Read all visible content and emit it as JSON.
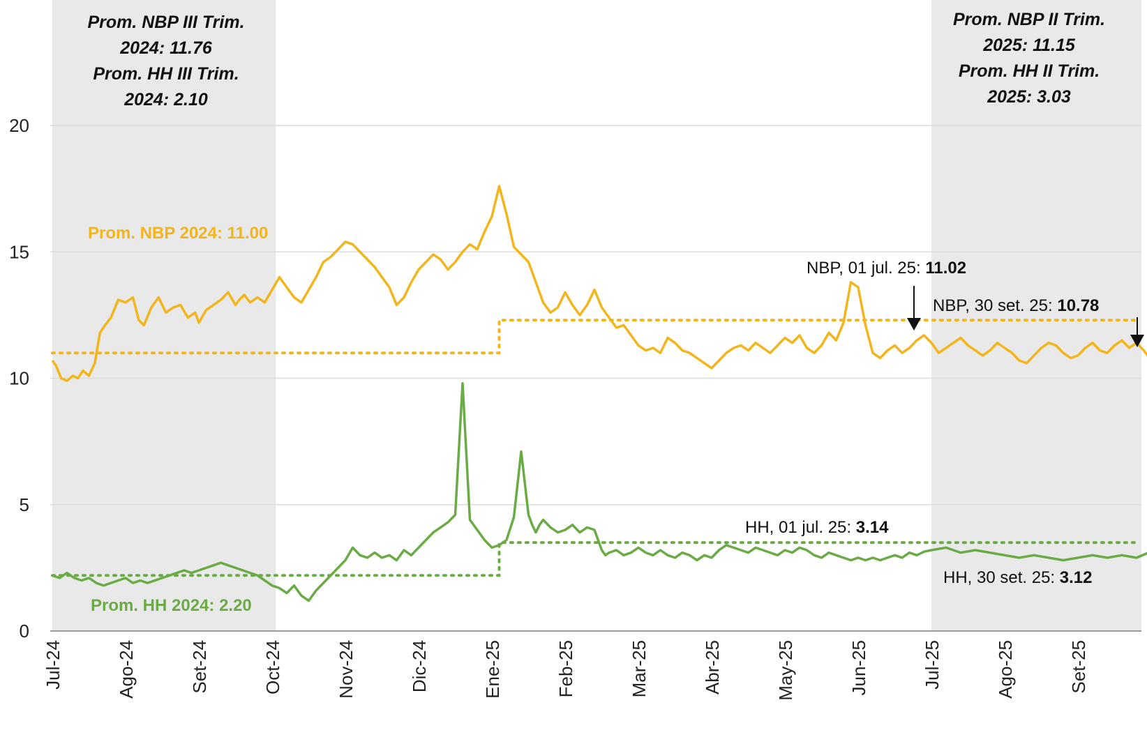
{
  "chart_data": {
    "type": "line",
    "ylim": [
      0,
      20
    ],
    "yticks": [
      "0",
      "5",
      "10",
      "15",
      "20"
    ],
    "categories": [
      "Jul-24",
      "Ago-24",
      "Set-24",
      "Oct-24",
      "Nov-24",
      "Dic-24",
      "Ene-25",
      "Feb-25",
      "Mar-25",
      "Abr-25",
      "May-25",
      "Jun-25",
      "Jul-25",
      "Ago-25",
      "Set-25"
    ],
    "grid": true,
    "colors": {
      "nbp": "#f2b51c",
      "hh": "#6aab45",
      "shade": "#e9e9e9"
    },
    "series": [
      {
        "key": "nbp",
        "x": [
          0,
          0.05,
          0.12,
          0.2,
          0.28,
          0.35,
          0.42,
          0.5,
          0.58,
          0.65,
          0.72,
          0.8,
          0.9,
          1.0,
          1.1,
          1.18,
          1.25,
          1.35,
          1.45,
          1.55,
          1.65,
          1.75,
          1.85,
          1.95,
          2.0,
          2.1,
          2.2,
          2.3,
          2.4,
          2.5,
          2.55,
          2.62,
          2.7,
          2.8,
          2.9,
          3.0,
          3.1,
          3.2,
          3.3,
          3.4,
          3.5,
          3.6,
          3.7,
          3.8,
          3.9,
          4.0,
          4.1,
          4.2,
          4.3,
          4.4,
          4.5,
          4.6,
          4.7,
          4.8,
          4.9,
          5.0,
          5.1,
          5.2,
          5.3,
          5.4,
          5.5,
          5.6,
          5.7,
          5.8,
          5.9,
          6.0,
          6.1,
          6.2,
          6.3,
          6.4,
          6.5,
          6.6,
          6.7,
          6.8,
          6.9,
          7.0,
          7.1,
          7.2,
          7.3,
          7.4,
          7.5,
          7.6,
          7.7,
          7.8,
          7.9,
          8.0,
          8.1,
          8.2,
          8.3,
          8.4,
          8.5,
          8.6,
          8.7,
          8.8,
          8.9,
          9.0,
          9.1,
          9.2,
          9.3,
          9.4,
          9.5,
          9.6,
          9.7,
          9.8,
          9.9,
          10.0,
          10.1,
          10.2,
          10.3,
          10.4,
          10.5,
          10.6,
          10.7,
          10.8,
          10.9,
          11.0,
          11.1,
          11.2,
          11.3,
          11.4,
          11.5,
          11.6,
          11.7,
          11.8,
          11.9,
          12.0,
          12.1,
          12.2,
          12.3,
          12.4,
          12.5,
          12.6,
          12.7,
          12.8,
          12.9,
          13.0,
          13.1,
          13.2,
          13.3,
          13.4,
          13.5,
          13.6,
          13.7,
          13.8,
          13.9,
          14.0,
          14.1,
          14.2,
          14.3,
          14.4,
          14.5,
          14.6,
          14.7,
          14.8,
          14.9,
          14.98
        ],
        "values": [
          10.7,
          10.5,
          10.0,
          9.9,
          10.1,
          10.0,
          10.3,
          10.1,
          10.6,
          11.8,
          12.1,
          12.4,
          13.1,
          13.0,
          13.2,
          12.3,
          12.1,
          12.8,
          13.2,
          12.6,
          12.8,
          12.9,
          12.4,
          12.6,
          12.2,
          12.7,
          12.9,
          13.1,
          13.4,
          12.9,
          13.1,
          13.3,
          13.0,
          13.2,
          13.0,
          13.5,
          14.0,
          13.6,
          13.2,
          13.0,
          13.5,
          14.0,
          14.6,
          14.8,
          15.1,
          15.4,
          15.3,
          15.0,
          14.7,
          14.4,
          14.0,
          13.6,
          12.9,
          13.2,
          13.8,
          14.3,
          14.6,
          14.9,
          14.7,
          14.3,
          14.6,
          15.0,
          15.3,
          15.1,
          15.8,
          16.4,
          17.6,
          16.5,
          15.2,
          14.9,
          14.6,
          13.8,
          13.0,
          12.6,
          12.8,
          13.4,
          12.9,
          12.5,
          12.9,
          13.5,
          12.8,
          12.4,
          12.0,
          12.1,
          11.7,
          11.3,
          11.1,
          11.2,
          11.0,
          11.6,
          11.4,
          11.1,
          11.0,
          10.8,
          10.6,
          10.4,
          10.7,
          11.0,
          11.2,
          11.3,
          11.1,
          11.4,
          11.2,
          11.0,
          11.3,
          11.6,
          11.4,
          11.7,
          11.2,
          11.0,
          11.3,
          11.8,
          11.5,
          12.2,
          13.8,
          13.6,
          12.1,
          11.0,
          10.8,
          11.1,
          11.3,
          11.0,
          11.2,
          11.5,
          11.7,
          11.4,
          11.0,
          11.2,
          11.4,
          11.6,
          11.3,
          11.1,
          10.9,
          11.1,
          11.4,
          11.2,
          11.0,
          10.7,
          10.6,
          10.9,
          11.2,
          11.4,
          11.3,
          11.0,
          10.8,
          10.9,
          11.2,
          11.4,
          11.1,
          11.0,
          11.3,
          11.5,
          11.2,
          11.4,
          11.1,
          10.78
        ]
      },
      {
        "key": "hh",
        "x": [
          0,
          0.1,
          0.2,
          0.3,
          0.4,
          0.5,
          0.6,
          0.7,
          0.8,
          0.9,
          1.0,
          1.1,
          1.2,
          1.3,
          1.4,
          1.5,
          1.6,
          1.7,
          1.8,
          1.9,
          2.0,
          2.1,
          2.2,
          2.3,
          2.4,
          2.5,
          2.6,
          2.7,
          2.8,
          2.9,
          3.0,
          3.1,
          3.2,
          3.3,
          3.4,
          3.5,
          3.6,
          3.7,
          3.8,
          3.9,
          4.0,
          4.1,
          4.2,
          4.3,
          4.4,
          4.5,
          4.6,
          4.7,
          4.8,
          4.9,
          5.0,
          5.1,
          5.2,
          5.3,
          5.4,
          5.5,
          5.6,
          5.7,
          5.8,
          5.9,
          6.0,
          6.1,
          6.2,
          6.3,
          6.4,
          6.5,
          6.55,
          6.6,
          6.65,
          6.7,
          6.8,
          6.9,
          7.0,
          7.1,
          7.2,
          7.3,
          7.4,
          7.45,
          7.5,
          7.55,
          7.6,
          7.7,
          7.8,
          7.9,
          8.0,
          8.1,
          8.2,
          8.3,
          8.4,
          8.5,
          8.6,
          8.7,
          8.8,
          8.9,
          9.0,
          9.1,
          9.2,
          9.3,
          9.4,
          9.5,
          9.6,
          9.7,
          9.8,
          9.9,
          10.0,
          10.1,
          10.2,
          10.3,
          10.4,
          10.5,
          10.6,
          10.7,
          10.8,
          10.9,
          11.0,
          11.1,
          11.2,
          11.3,
          11.4,
          11.5,
          11.6,
          11.7,
          11.8,
          11.9,
          12.0,
          12.2,
          12.4,
          12.6,
          12.8,
          13.0,
          13.2,
          13.4,
          13.6,
          13.8,
          14.0,
          14.2,
          14.4,
          14.6,
          14.8,
          14.98
        ],
        "values": [
          2.2,
          2.1,
          2.3,
          2.1,
          2.0,
          2.1,
          1.9,
          1.8,
          1.9,
          2.0,
          2.1,
          1.9,
          2.0,
          1.9,
          2.0,
          2.1,
          2.2,
          2.3,
          2.4,
          2.3,
          2.4,
          2.5,
          2.6,
          2.7,
          2.6,
          2.5,
          2.4,
          2.3,
          2.2,
          2.0,
          1.8,
          1.7,
          1.5,
          1.8,
          1.4,
          1.2,
          1.6,
          1.9,
          2.2,
          2.5,
          2.8,
          3.3,
          3.0,
          2.9,
          3.1,
          2.9,
          3.0,
          2.8,
          3.2,
          3.0,
          3.3,
          3.6,
          3.9,
          4.1,
          4.3,
          4.6,
          9.8,
          4.4,
          4.0,
          3.6,
          3.3,
          3.4,
          3.6,
          4.5,
          7.1,
          4.6,
          4.2,
          3.9,
          4.2,
          4.4,
          4.1,
          3.9,
          4.0,
          4.2,
          3.9,
          4.1,
          4.0,
          3.6,
          3.2,
          3.0,
          3.1,
          3.2,
          3.0,
          3.1,
          3.3,
          3.1,
          3.0,
          3.2,
          3.0,
          2.9,
          3.1,
          3.0,
          2.8,
          3.0,
          2.9,
          3.2,
          3.4,
          3.3,
          3.2,
          3.1,
          3.3,
          3.2,
          3.1,
          3.0,
          3.2,
          3.1,
          3.3,
          3.2,
          3.0,
          2.9,
          3.1,
          3.0,
          2.9,
          2.8,
          2.9,
          2.8,
          2.9,
          2.8,
          2.9,
          3.0,
          2.9,
          3.1,
          3.0,
          3.14,
          3.2,
          3.3,
          3.1,
          3.2,
          3.1,
          3.0,
          2.9,
          3.0,
          2.9,
          2.8,
          2.9,
          3.0,
          2.9,
          3.0,
          2.9,
          3.12
        ]
      }
    ],
    "reference_lines": [
      {
        "key": "nbp",
        "segments": [
          [
            0,
            6.0,
            11.0
          ],
          [
            6.1,
            15.0,
            12.3
          ]
        ]
      },
      {
        "key": "hh",
        "segments": [
          [
            0,
            6.0,
            2.2
          ],
          [
            6.1,
            15.0,
            3.5
          ]
        ]
      }
    ],
    "shaded_ranges": [
      [
        0,
        3.05
      ],
      [
        12.0,
        15.0
      ]
    ],
    "annotations": {
      "q3_2024": [
        "Prom. NBP III Trim.",
        "2024: 11.76",
        "Prom. HH III Trim.",
        "2024: 2.10"
      ],
      "q2_2025": [
        "Prom. NBP II Trim.",
        "2025: 11.15",
        "Prom. HH II Trim.",
        "2025: 3.03"
      ],
      "nbp_avg_2024": "Prom. NBP 2024: 11.00",
      "hh_avg_2024": "Prom. HH 2024: 2.20",
      "nbp_jul_label": "NBP, 01 jul. 25: ",
      "nbp_jul_value": "11.02",
      "nbp_sep_label": "NBP,  30 set. 25: ",
      "nbp_sep_value": "10.78",
      "hh_jul_label": "HH, 01 jul. 25: ",
      "hh_jul_value": "3.14",
      "hh_sep_label": "HH, 30 set. 25: ",
      "hh_sep_value": "3.12"
    }
  }
}
